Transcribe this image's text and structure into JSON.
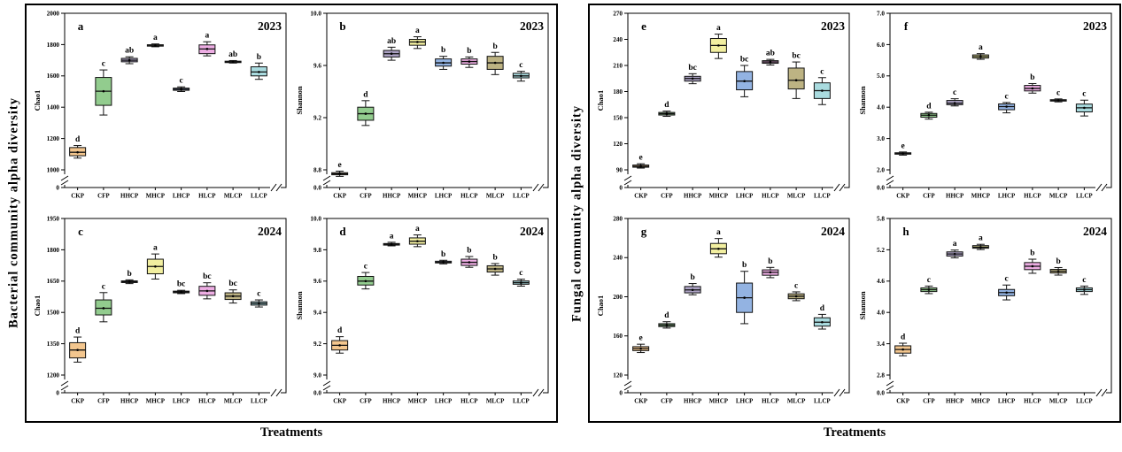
{
  "figure": {
    "groups": [
      {
        "key": "bacterial",
        "axis_label": "Bacterial community alpha diversity",
        "x_title": "Treatments",
        "panel_ids": [
          "a",
          "b",
          "c",
          "d"
        ]
      },
      {
        "key": "fungal",
        "axis_label": "Fungal community alpha diversity",
        "x_title": "Treatments",
        "panel_ids": [
          "e",
          "f",
          "g",
          "h"
        ]
      }
    ],
    "treatment_colors": {
      "CKP": "#F3C68E",
      "CFP": "#92CC8E",
      "HHCP": "#ACA2C4",
      "MHCP": "#F2EFA0",
      "LHCP": "#93B3E2",
      "HLCP": "#EDADE3",
      "MLCP": "#BDB383",
      "LLCP": "#A9DBDF"
    },
    "box_stroke": "#111111"
  },
  "chart_data": [
    {
      "id": "a",
      "group": "bacterial",
      "year": "2023",
      "type": "box",
      "ylabel": "Chao1",
      "zero_label": "0",
      "ymax": 2000,
      "ymin": 1000,
      "yticks": [
        1000,
        1200,
        1400,
        1600,
        1800,
        2000
      ],
      "ytick_labels": [
        "1000",
        "1200",
        "1400",
        "1600",
        "1800",
        "2000"
      ],
      "categories": [
        "CKP",
        "CFP",
        "HHCP",
        "MHCP",
        "LHCP",
        "HLCP",
        "MLCP",
        "LLCP"
      ],
      "boxes": [
        {
          "t": "CKP",
          "lo": 1075,
          "q1": 1090,
          "md": 1112,
          "q3": 1142,
          "hi": 1155,
          "lt": "d"
        },
        {
          "t": "CFP",
          "lo": 1350,
          "q1": 1412,
          "md": 1502,
          "q3": 1590,
          "hi": 1638,
          "lt": "c"
        },
        {
          "t": "HHCP",
          "lo": 1678,
          "q1": 1690,
          "md": 1700,
          "q3": 1712,
          "hi": 1722,
          "lt": "ab"
        },
        {
          "t": "MHCP",
          "lo": 1786,
          "q1": 1791,
          "md": 1795,
          "q3": 1799,
          "hi": 1804,
          "lt": "a"
        },
        {
          "t": "LHCP",
          "lo": 1500,
          "q1": 1508,
          "md": 1515,
          "q3": 1522,
          "hi": 1530,
          "lt": "c"
        },
        {
          "t": "HLCP",
          "lo": 1728,
          "q1": 1742,
          "md": 1772,
          "q3": 1798,
          "hi": 1818,
          "lt": "a"
        },
        {
          "t": "MLCP",
          "lo": 1682,
          "q1": 1686,
          "md": 1690,
          "q3": 1694,
          "hi": 1698,
          "lt": "ab"
        },
        {
          "t": "LLCP",
          "lo": 1578,
          "q1": 1600,
          "md": 1625,
          "q3": 1658,
          "hi": 1682,
          "lt": "b"
        }
      ]
    },
    {
      "id": "b",
      "group": "bacterial",
      "year": "2023",
      "type": "box",
      "ylabel": "Shannon",
      "zero_label": "0.0",
      "ymax": 10.0,
      "ymin": 8.8,
      "yticks": [
        8.8,
        9.2,
        9.6,
        10.0
      ],
      "ytick_labels": [
        "8.8",
        "9.2",
        "9.6",
        "10.0"
      ],
      "categories": [
        "CKP",
        "CFP",
        "HHCP",
        "MHCP",
        "LHCP",
        "HLCP",
        "MLCP",
        "LLCP"
      ],
      "boxes": [
        {
          "t": "CKP",
          "lo": 8.75,
          "q1": 8.762,
          "md": 8.77,
          "q3": 8.778,
          "hi": 8.79,
          "lt": "e"
        },
        {
          "t": "CFP",
          "lo": 9.14,
          "q1": 9.18,
          "md": 9.23,
          "q3": 9.28,
          "hi": 9.33,
          "lt": "d"
        },
        {
          "t": "HHCP",
          "lo": 9.64,
          "q1": 9.665,
          "md": 9.69,
          "q3": 9.715,
          "hi": 9.74,
          "lt": "ab"
        },
        {
          "t": "MHCP",
          "lo": 9.73,
          "q1": 9.755,
          "md": 9.78,
          "q3": 9.8,
          "hi": 9.82,
          "lt": "a"
        },
        {
          "t": "LHCP",
          "lo": 9.57,
          "q1": 9.595,
          "md": 9.62,
          "q3": 9.65,
          "hi": 9.67,
          "lt": "b"
        },
        {
          "t": "HLCP",
          "lo": 9.585,
          "q1": 9.61,
          "md": 9.63,
          "q3": 9.65,
          "hi": 9.665,
          "lt": "b"
        },
        {
          "t": "MLCP",
          "lo": 9.53,
          "q1": 9.57,
          "md": 9.62,
          "q3": 9.67,
          "hi": 9.7,
          "lt": "b"
        },
        {
          "t": "LLCP",
          "lo": 9.48,
          "q1": 9.505,
          "md": 9.52,
          "q3": 9.54,
          "hi": 9.555,
          "lt": "c"
        }
      ]
    },
    {
      "id": "c",
      "group": "bacterial",
      "year": "2024",
      "type": "box",
      "ylabel": "Chao1",
      "zero_label": "0",
      "ymax": 1950,
      "ymin": 1200,
      "yticks": [
        1200,
        1350,
        1500,
        1650,
        1800,
        1950
      ],
      "ytick_labels": [
        "1200",
        "1350",
        "1500",
        "1650",
        "1800",
        "1950"
      ],
      "categories": [
        "CKP",
        "CFP",
        "HHCP",
        "MHCP",
        "LHCP",
        "HLCP",
        "MLCP",
        "LLCP"
      ],
      "boxes": [
        {
          "t": "CKP",
          "lo": 1262,
          "q1": 1282,
          "md": 1320,
          "q3": 1355,
          "hi": 1382,
          "lt": "d"
        },
        {
          "t": "CFP",
          "lo": 1455,
          "q1": 1488,
          "md": 1520,
          "q3": 1560,
          "hi": 1595,
          "lt": "c"
        },
        {
          "t": "HHCP",
          "lo": 1638,
          "q1": 1643,
          "md": 1647,
          "q3": 1651,
          "hi": 1656,
          "lt": "b"
        },
        {
          "t": "MHCP",
          "lo": 1660,
          "q1": 1685,
          "md": 1720,
          "q3": 1755,
          "hi": 1780,
          "lt": "a"
        },
        {
          "t": "LHCP",
          "lo": 1590,
          "q1": 1594,
          "md": 1598,
          "q3": 1602,
          "hi": 1606,
          "lt": "bc"
        },
        {
          "t": "HLCP",
          "lo": 1565,
          "q1": 1582,
          "md": 1603,
          "q3": 1625,
          "hi": 1642,
          "lt": "bc"
        },
        {
          "t": "MLCP",
          "lo": 1545,
          "q1": 1562,
          "md": 1578,
          "q3": 1594,
          "hi": 1608,
          "lt": "bc"
        },
        {
          "t": "LLCP",
          "lo": 1526,
          "q1": 1535,
          "md": 1543,
          "q3": 1551,
          "hi": 1560,
          "lt": "c"
        }
      ]
    },
    {
      "id": "d",
      "group": "bacterial",
      "year": "2024",
      "type": "box",
      "ylabel": "Shannon",
      "zero_label": "0.0",
      "ymax": 10.0,
      "ymin": 9.0,
      "yticks": [
        9.0,
        9.2,
        9.4,
        9.6,
        9.8,
        10.0
      ],
      "ytick_labels": [
        "9.0",
        "9.2",
        "9.4",
        "9.6",
        "9.8",
        "10.0"
      ],
      "categories": [
        "CKP",
        "CFP",
        "HHCP",
        "MHCP",
        "LHCP",
        "HLCP",
        "MLCP",
        "LLCP"
      ],
      "boxes": [
        {
          "t": "CKP",
          "lo": 9.14,
          "q1": 9.16,
          "md": 9.19,
          "q3": 9.22,
          "hi": 9.245,
          "lt": "d"
        },
        {
          "t": "CFP",
          "lo": 9.55,
          "q1": 9.575,
          "md": 9.6,
          "q3": 9.63,
          "hi": 9.655,
          "lt": "c"
        },
        {
          "t": "HHCP",
          "lo": 9.825,
          "q1": 9.83,
          "md": 9.835,
          "q3": 9.84,
          "hi": 9.848,
          "lt": "a"
        },
        {
          "t": "MHCP",
          "lo": 9.82,
          "q1": 9.836,
          "md": 9.855,
          "q3": 9.876,
          "hi": 9.895,
          "lt": "a"
        },
        {
          "t": "LHCP",
          "lo": 9.71,
          "q1": 9.716,
          "md": 9.721,
          "q3": 9.727,
          "hi": 9.733,
          "lt": "b"
        },
        {
          "t": "HLCP",
          "lo": 9.688,
          "q1": 9.7,
          "md": 9.72,
          "q3": 9.74,
          "hi": 9.757,
          "lt": "b"
        },
        {
          "t": "MLCP",
          "lo": 9.638,
          "q1": 9.658,
          "md": 9.678,
          "q3": 9.698,
          "hi": 9.712,
          "lt": "b"
        },
        {
          "t": "LLCP",
          "lo": 9.568,
          "q1": 9.58,
          "md": 9.59,
          "q3": 9.601,
          "hi": 9.612,
          "lt": "c"
        }
      ]
    },
    {
      "id": "e",
      "group": "fungal",
      "year": "2023",
      "type": "box",
      "ylabel": "Chao1",
      "zero_label": "0",
      "ymax": 270,
      "ymin": 90,
      "yticks": [
        90,
        120,
        150,
        180,
        210,
        240,
        270
      ],
      "ytick_labels": [
        "90",
        "120",
        "150",
        "180",
        "210",
        "240",
        "270"
      ],
      "categories": [
        "CKP",
        "CFP",
        "HHCP",
        "MHCP",
        "LHCP",
        "HLCP",
        "MLCP",
        "LLCP"
      ],
      "boxes": [
        {
          "t": "CKP",
          "lo": 92,
          "q1": 93,
          "md": 94,
          "q3": 95.5,
          "hi": 97,
          "lt": "e"
        },
        {
          "t": "CFP",
          "lo": 151.5,
          "q1": 153,
          "md": 154.5,
          "q3": 156,
          "hi": 157.5,
          "lt": "d"
        },
        {
          "t": "HHCP",
          "lo": 189,
          "q1": 192,
          "md": 195,
          "q3": 197.5,
          "hi": 200.5,
          "lt": "bc"
        },
        {
          "t": "MHCP",
          "lo": 218,
          "q1": 225,
          "md": 233,
          "q3": 241,
          "hi": 246,
          "lt": "a"
        },
        {
          "t": "LHCP",
          "lo": 174,
          "q1": 182,
          "md": 192,
          "q3": 203,
          "hi": 210,
          "lt": "bc"
        },
        {
          "t": "HLCP",
          "lo": 210.5,
          "q1": 212.5,
          "md": 214,
          "q3": 215.5,
          "hi": 217,
          "lt": "ab"
        },
        {
          "t": "MLCP",
          "lo": 172,
          "q1": 183,
          "md": 193,
          "q3": 207,
          "hi": 214,
          "lt": "bc"
        },
        {
          "t": "LLCP",
          "lo": 165,
          "q1": 172,
          "md": 181,
          "q3": 190,
          "hi": 196,
          "lt": "c"
        }
      ]
    },
    {
      "id": "f",
      "group": "fungal",
      "year": "2023",
      "type": "box",
      "ylabel": "Shannon",
      "zero_label": "0.0",
      "ymax": 7.0,
      "ymin": 2.0,
      "yticks": [
        2.0,
        3.0,
        4.0,
        5.0,
        6.0,
        7.0
      ],
      "ytick_labels": [
        "2.0",
        "3.0",
        "4.0",
        "5.0",
        "6.0",
        "7.0"
      ],
      "categories": [
        "CKP",
        "CFP",
        "HHCP",
        "MHCP",
        "LHCP",
        "HLCP",
        "MLCP",
        "LLCP"
      ],
      "boxes": [
        {
          "t": "CKP",
          "lo": 2.47,
          "q1": 2.5,
          "md": 2.52,
          "q3": 2.545,
          "hi": 2.57,
          "lt": "e"
        },
        {
          "t": "CFP",
          "lo": 3.62,
          "q1": 3.68,
          "md": 3.745,
          "q3": 3.8,
          "hi": 3.84,
          "lt": "d"
        },
        {
          "t": "HHCP",
          "lo": 4.04,
          "q1": 4.08,
          "md": 4.13,
          "q3": 4.215,
          "hi": 4.27,
          "lt": "c"
        },
        {
          "t": "MHCP",
          "lo": 5.53,
          "q1": 5.57,
          "md": 5.62,
          "q3": 5.67,
          "hi": 5.71,
          "lt": "a"
        },
        {
          "t": "LHCP",
          "lo": 3.82,
          "q1": 3.92,
          "md": 4.02,
          "q3": 4.105,
          "hi": 4.15,
          "lt": "c"
        },
        {
          "t": "HLCP",
          "lo": 4.45,
          "q1": 4.52,
          "md": 4.6,
          "q3": 4.695,
          "hi": 4.755,
          "lt": "b"
        },
        {
          "t": "MLCP",
          "lo": 4.17,
          "q1": 4.2,
          "md": 4.22,
          "q3": 4.24,
          "hi": 4.265,
          "lt": "c"
        },
        {
          "t": "LLCP",
          "lo": 3.72,
          "q1": 3.85,
          "md": 3.98,
          "q3": 4.1,
          "hi": 4.225,
          "lt": "c"
        }
      ]
    },
    {
      "id": "g",
      "group": "fungal",
      "year": "2024",
      "type": "box",
      "ylabel": "Chao1",
      "zero_label": "0",
      "ymax": 280,
      "ymin": 120,
      "yticks": [
        120,
        160,
        200,
        240,
        280
      ],
      "ytick_labels": [
        "120",
        "160",
        "200",
        "240",
        "280"
      ],
      "categories": [
        "CKP",
        "CFP",
        "HHCP",
        "MHCP",
        "LHCP",
        "HLCP",
        "MLCP",
        "LLCP"
      ],
      "boxes": [
        {
          "t": "CKP",
          "lo": 143,
          "q1": 145,
          "md": 147,
          "q3": 149,
          "hi": 151.5,
          "lt": "e"
        },
        {
          "t": "CFP",
          "lo": 168,
          "q1": 169.5,
          "md": 171,
          "q3": 172.5,
          "hi": 174.5,
          "lt": "d"
        },
        {
          "t": "HHCP",
          "lo": 202,
          "q1": 204,
          "md": 207,
          "q3": 210.5,
          "hi": 213.5,
          "lt": "b"
        },
        {
          "t": "MHCP",
          "lo": 240.5,
          "q1": 244,
          "md": 249,
          "q3": 254.5,
          "hi": 259.5,
          "lt": "a"
        },
        {
          "t": "LHCP",
          "lo": 172.5,
          "q1": 184,
          "md": 199,
          "q3": 214,
          "hi": 226,
          "lt": "b"
        },
        {
          "t": "HLCP",
          "lo": 219.5,
          "q1": 222,
          "md": 225,
          "q3": 227.5,
          "hi": 230,
          "lt": "b"
        },
        {
          "t": "MLCP",
          "lo": 196,
          "q1": 198,
          "md": 200.5,
          "q3": 203,
          "hi": 205,
          "lt": "c"
        },
        {
          "t": "LLCP",
          "lo": 167,
          "q1": 170,
          "md": 174,
          "q3": 178.5,
          "hi": 182,
          "lt": "d"
        }
      ]
    },
    {
      "id": "h",
      "group": "fungal",
      "year": "2024",
      "type": "box",
      "ylabel": "Shannon",
      "zero_label": "0.0",
      "ymax": 5.8,
      "ymin": 2.8,
      "yticks": [
        2.8,
        3.4,
        4.0,
        4.6,
        5.2,
        5.8
      ],
      "ytick_labels": [
        "2.8",
        "3.4",
        "4.0",
        "4.6",
        "5.2",
        "5.8"
      ],
      "categories": [
        "CKP",
        "CFP",
        "HHCP",
        "MHCP",
        "LHCP",
        "HLCP",
        "MLCP",
        "LLCP"
      ],
      "boxes": [
        {
          "t": "CKP",
          "lo": 3.17,
          "q1": 3.22,
          "md": 3.29,
          "q3": 3.36,
          "hi": 3.41,
          "lt": "d"
        },
        {
          "t": "CFP",
          "lo": 4.36,
          "q1": 4.4,
          "md": 4.435,
          "q3": 4.47,
          "hi": 4.505,
          "lt": "c"
        },
        {
          "t": "HHCP",
          "lo": 5.045,
          "q1": 5.08,
          "md": 5.12,
          "q3": 5.16,
          "hi": 5.195,
          "lt": "a"
        },
        {
          "t": "MHCP",
          "lo": 5.205,
          "q1": 5.23,
          "md": 5.25,
          "q3": 5.28,
          "hi": 5.305,
          "lt": "a"
        },
        {
          "t": "LHCP",
          "lo": 4.24,
          "q1": 4.32,
          "md": 4.38,
          "q3": 4.44,
          "hi": 4.525,
          "lt": "c"
        },
        {
          "t": "HLCP",
          "lo": 4.75,
          "q1": 4.82,
          "md": 4.885,
          "q3": 4.955,
          "hi": 5.02,
          "lt": "b"
        },
        {
          "t": "MLCP",
          "lo": 4.715,
          "q1": 4.755,
          "md": 4.79,
          "q3": 4.825,
          "hi": 4.86,
          "lt": "b"
        },
        {
          "t": "LLCP",
          "lo": 4.345,
          "q1": 4.4,
          "md": 4.435,
          "q3": 4.47,
          "hi": 4.505,
          "lt": "c"
        }
      ]
    }
  ]
}
